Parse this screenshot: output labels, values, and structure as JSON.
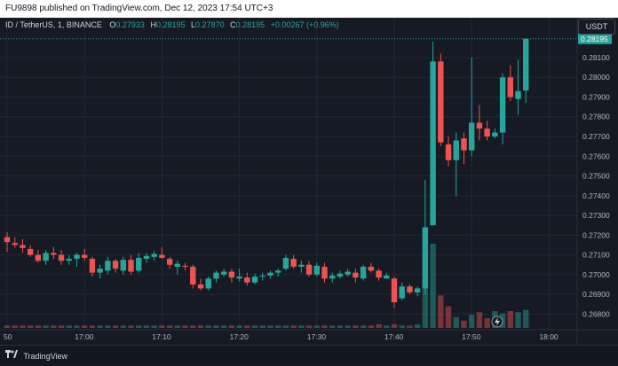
{
  "header": {
    "publish_text": "FU9898 published on TradingView.com, Dec 12, 2023 17:54 UTC+3"
  },
  "legend": {
    "symbol": "ID / TetherUS, 1, BINANCE",
    "o_label": "O",
    "o_value": "0.27933",
    "h_label": "H",
    "h_value": "0.28195",
    "l_label": "L",
    "l_value": "0.27870",
    "c_label": "C",
    "c_value": "0.28195",
    "change": "+0.00267 (+0.96%)"
  },
  "currency_button": "USDT",
  "price_axis": {
    "ticks": [
      "0.28100",
      "0.28000",
      "0.27900",
      "0.27800",
      "0.27700",
      "0.27600",
      "0.27500",
      "0.27400",
      "0.27300",
      "0.27200",
      "0.27100",
      "0.27000",
      "0.26900",
      "0.26800"
    ],
    "current_price": "0.28195"
  },
  "time_axis": {
    "ticks": [
      "50",
      "17:00",
      "17:10",
      "17:20",
      "17:30",
      "17:40",
      "17:50",
      "18:00"
    ]
  },
  "footer": {
    "brand": "TradingView"
  },
  "colors": {
    "up": "#26a69a",
    "down": "#ef5350",
    "background": "#161a25",
    "grid": "#232735"
  },
  "chart_data": {
    "type": "candlestick",
    "x_start": "16:50",
    "interval_minutes": 1,
    "ylim": [
      0.2673,
      0.2823
    ],
    "candles": [
      {
        "o": 0.2719,
        "h": 0.27215,
        "l": 0.27115,
        "c": 0.27165
      },
      {
        "o": 0.2716,
        "h": 0.2719,
        "l": 0.27135,
        "c": 0.2715
      },
      {
        "o": 0.2715,
        "h": 0.2718,
        "l": 0.2711,
        "c": 0.27135
      },
      {
        "o": 0.2713,
        "h": 0.2715,
        "l": 0.2709,
        "c": 0.271
      },
      {
        "o": 0.271,
        "h": 0.27125,
        "l": 0.2706,
        "c": 0.2707
      },
      {
        "o": 0.2707,
        "h": 0.27125,
        "l": 0.2705,
        "c": 0.2711
      },
      {
        "o": 0.2711,
        "h": 0.2714,
        "l": 0.2708,
        "c": 0.271
      },
      {
        "o": 0.271,
        "h": 0.27125,
        "l": 0.2705,
        "c": 0.2707
      },
      {
        "o": 0.2707,
        "h": 0.271,
        "l": 0.2705,
        "c": 0.2708
      },
      {
        "o": 0.2708,
        "h": 0.2711,
        "l": 0.2704,
        "c": 0.271
      },
      {
        "o": 0.271,
        "h": 0.2713,
        "l": 0.2707,
        "c": 0.27085
      },
      {
        "o": 0.2708,
        "h": 0.2709,
        "l": 0.2699,
        "c": 0.2701
      },
      {
        "o": 0.2701,
        "h": 0.2705,
        "l": 0.2698,
        "c": 0.2703
      },
      {
        "o": 0.2702,
        "h": 0.2709,
        "l": 0.27,
        "c": 0.2707
      },
      {
        "o": 0.2707,
        "h": 0.2708,
        "l": 0.2701,
        "c": 0.2703
      },
      {
        "o": 0.2702,
        "h": 0.2709,
        "l": 0.27,
        "c": 0.27075
      },
      {
        "o": 0.27075,
        "h": 0.271,
        "l": 0.27,
        "c": 0.27015
      },
      {
        "o": 0.2702,
        "h": 0.2711,
        "l": 0.2701,
        "c": 0.27085
      },
      {
        "o": 0.2708,
        "h": 0.2711,
        "l": 0.2706,
        "c": 0.27095
      },
      {
        "o": 0.2709,
        "h": 0.2712,
        "l": 0.2707,
        "c": 0.27105
      },
      {
        "o": 0.271,
        "h": 0.2714,
        "l": 0.2708,
        "c": 0.27085
      },
      {
        "o": 0.2708,
        "h": 0.2709,
        "l": 0.2703,
        "c": 0.2705
      },
      {
        "o": 0.2704,
        "h": 0.2707,
        "l": 0.27,
        "c": 0.27055
      },
      {
        "o": 0.27045,
        "h": 0.2706,
        "l": 0.2702,
        "c": 0.2704
      },
      {
        "o": 0.2704,
        "h": 0.2705,
        "l": 0.2693,
        "c": 0.2695
      },
      {
        "o": 0.2695,
        "h": 0.2698,
        "l": 0.2692,
        "c": 0.2693
      },
      {
        "o": 0.2693,
        "h": 0.2699,
        "l": 0.2692,
        "c": 0.2698
      },
      {
        "o": 0.2698,
        "h": 0.2702,
        "l": 0.2696,
        "c": 0.2701
      },
      {
        "o": 0.27,
        "h": 0.2703,
        "l": 0.2699,
        "c": 0.27015
      },
      {
        "o": 0.27015,
        "h": 0.2703,
        "l": 0.2696,
        "c": 0.26985
      },
      {
        "o": 0.2698,
        "h": 0.2703,
        "l": 0.26965,
        "c": 0.2699
      },
      {
        "o": 0.26985,
        "h": 0.2701,
        "l": 0.26945,
        "c": 0.2696
      },
      {
        "o": 0.2696,
        "h": 0.27005,
        "l": 0.2695,
        "c": 0.2699
      },
      {
        "o": 0.2699,
        "h": 0.2701,
        "l": 0.2697,
        "c": 0.26995
      },
      {
        "o": 0.26995,
        "h": 0.2702,
        "l": 0.2698,
        "c": 0.2701
      },
      {
        "o": 0.2701,
        "h": 0.2703,
        "l": 0.2699,
        "c": 0.2702
      },
      {
        "o": 0.2703,
        "h": 0.271,
        "l": 0.2702,
        "c": 0.27085
      },
      {
        "o": 0.2708,
        "h": 0.271,
        "l": 0.2703,
        "c": 0.2704
      },
      {
        "o": 0.2704,
        "h": 0.2707,
        "l": 0.2701,
        "c": 0.2705
      },
      {
        "o": 0.2705,
        "h": 0.2707,
        "l": 0.2699,
        "c": 0.27
      },
      {
        "o": 0.27,
        "h": 0.2706,
        "l": 0.2699,
        "c": 0.27045
      },
      {
        "o": 0.2704,
        "h": 0.2706,
        "l": 0.2696,
        "c": 0.2698
      },
      {
        "o": 0.2698,
        "h": 0.2701,
        "l": 0.2696,
        "c": 0.26995
      },
      {
        "o": 0.2699,
        "h": 0.2702,
        "l": 0.2698,
        "c": 0.27005
      },
      {
        "o": 0.27,
        "h": 0.2703,
        "l": 0.2699,
        "c": 0.27015
      },
      {
        "o": 0.2701,
        "h": 0.2703,
        "l": 0.2696,
        "c": 0.26985
      },
      {
        "o": 0.2698,
        "h": 0.2705,
        "l": 0.2697,
        "c": 0.2704
      },
      {
        "o": 0.2704,
        "h": 0.2706,
        "l": 0.2701,
        "c": 0.2702
      },
      {
        "o": 0.2702,
        "h": 0.2703,
        "l": 0.2697,
        "c": 0.26985
      },
      {
        "o": 0.2698,
        "h": 0.2701,
        "l": 0.2698,
        "c": 0.26995
      },
      {
        "o": 0.2698,
        "h": 0.2699,
        "l": 0.2683,
        "c": 0.2686
      },
      {
        "o": 0.2688,
        "h": 0.2696,
        "l": 0.2687,
        "c": 0.2694
      },
      {
        "o": 0.2694,
        "h": 0.2695,
        "l": 0.269,
        "c": 0.2691
      },
      {
        "o": 0.2691,
        "h": 0.2694,
        "l": 0.2689,
        "c": 0.2693
      },
      {
        "o": 0.2693,
        "h": 0.2748,
        "l": 0.269,
        "c": 0.2724
      },
      {
        "o": 0.2725,
        "h": 0.2818,
        "l": 0.2725,
        "c": 0.2808
      },
      {
        "o": 0.2808,
        "h": 0.2812,
        "l": 0.2765,
        "c": 0.2767
      },
      {
        "o": 0.2766,
        "h": 0.277,
        "l": 0.2755,
        "c": 0.2758
      },
      {
        "o": 0.2758,
        "h": 0.2772,
        "l": 0.274,
        "c": 0.2768
      },
      {
        "o": 0.2769,
        "h": 0.2772,
        "l": 0.2756,
        "c": 0.2763
      },
      {
        "o": 0.2763,
        "h": 0.281,
        "l": 0.276,
        "c": 0.2777
      },
      {
        "o": 0.2777,
        "h": 0.2786,
        "l": 0.2768,
        "c": 0.2774
      },
      {
        "o": 0.2774,
        "h": 0.2778,
        "l": 0.2768,
        "c": 0.277
      },
      {
        "o": 0.277,
        "h": 0.2774,
        "l": 0.2769,
        "c": 0.2772
      },
      {
        "o": 0.2772,
        "h": 0.2802,
        "l": 0.2766,
        "c": 0.28
      },
      {
        "o": 0.28,
        "h": 0.2806,
        "l": 0.2788,
        "c": 0.279
      },
      {
        "o": 0.2789,
        "h": 0.2809,
        "l": 0.2781,
        "c": 0.2793
      },
      {
        "o": 0.27933,
        "h": 0.28195,
        "l": 0.2787,
        "c": 0.28195
      }
    ],
    "volumes": [
      2,
      2,
      2,
      2,
      2,
      2,
      2,
      2,
      2,
      2,
      2,
      2,
      2,
      2,
      2,
      2,
      2,
      2,
      2,
      2,
      2,
      2,
      2,
      2,
      2,
      2,
      2,
      2,
      2,
      2,
      2,
      2,
      2,
      2,
      2,
      2,
      2,
      2,
      2,
      2,
      2,
      2,
      2,
      2,
      2,
      2,
      2,
      2,
      3,
      2,
      3,
      2,
      2,
      3,
      34,
      70,
      27,
      18,
      9,
      6,
      11,
      13,
      8,
      14,
      12,
      14,
      13,
      15
    ]
  }
}
